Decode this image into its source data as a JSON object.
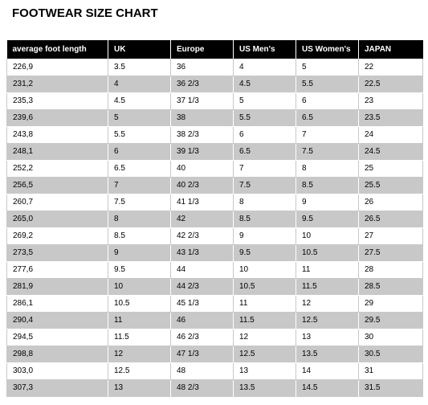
{
  "title": "FOOTWEAR SIZE CHART",
  "columns": [
    "average foot length",
    "UK",
    "Europe",
    "US Men's",
    "US Women's",
    "JAPAN"
  ],
  "rows": [
    [
      "226,9",
      "3.5",
      "36",
      "4",
      "5",
      "22"
    ],
    [
      "231,2",
      "4",
      "36 2/3",
      "4.5",
      "5.5",
      "22.5"
    ],
    [
      "235,3",
      "4.5",
      "37 1/3",
      "5",
      "6",
      "23"
    ],
    [
      "239,6",
      "5",
      "38",
      "5.5",
      "6.5",
      "23.5"
    ],
    [
      "243,8",
      "5.5",
      "38 2/3",
      "6",
      "7",
      "24"
    ],
    [
      "248,1",
      "6",
      "39 1/3",
      "6.5",
      "7.5",
      "24.5"
    ],
    [
      "252,2",
      "6.5",
      "40",
      "7",
      "8",
      "25"
    ],
    [
      "256,5",
      "7",
      "40 2/3",
      "7.5",
      "8.5",
      "25.5"
    ],
    [
      "260,7",
      "7.5",
      "41 1/3",
      "8",
      "9",
      "26"
    ],
    [
      "265,0",
      "8",
      "42",
      "8.5",
      "9.5",
      "26.5"
    ],
    [
      "269,2",
      "8.5",
      "42 2/3",
      "9",
      "10",
      "27"
    ],
    [
      "273,5",
      "9",
      "43 1/3",
      "9.5",
      "10.5",
      "27.5"
    ],
    [
      "277,6",
      "9.5",
      "44",
      "10",
      "11",
      "28"
    ],
    [
      "281,9",
      "10",
      "44 2/3",
      "10.5",
      "11.5",
      "28.5"
    ],
    [
      "286,1",
      "10.5",
      "45 1/3",
      "11",
      "12",
      "29"
    ],
    [
      "290,4",
      "11",
      "46",
      "11.5",
      "12.5",
      "29.5"
    ],
    [
      "294,5",
      "11.5",
      "46 2/3",
      "12",
      "13",
      "30"
    ],
    [
      "298,8",
      "12",
      "47 1/3",
      "12.5",
      "13.5",
      "30.5"
    ],
    [
      "303,0",
      "12.5",
      "48",
      "13",
      "14",
      "31"
    ],
    [
      "307,3",
      "13",
      "48 2/3",
      "13.5",
      "14.5",
      "31.5"
    ]
  ],
  "colors": {
    "header_bg": "#000000",
    "header_text": "#ffffff",
    "stripe": "#c8c8c8",
    "row_bg": "#ffffff"
  }
}
